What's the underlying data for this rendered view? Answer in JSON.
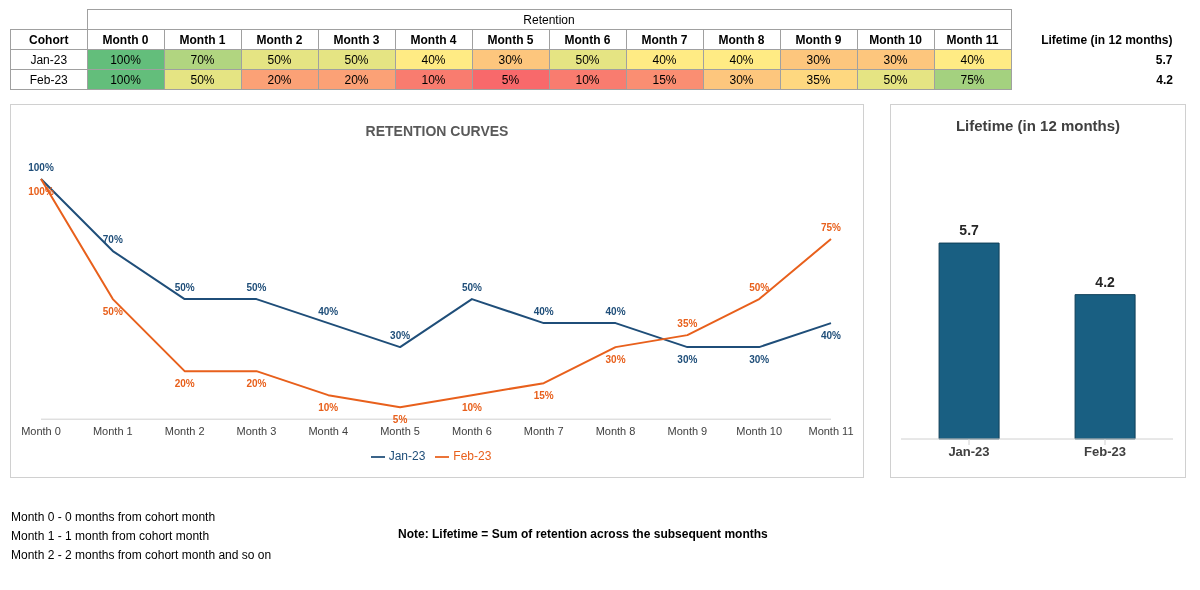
{
  "chart_data": [
    {
      "type": "heatmap",
      "title": "Retention",
      "ylabel": "Cohort",
      "y2label": "Lifetime (in 12 months)",
      "categories": [
        "Month 0",
        "Month 1",
        "Month 2",
        "Month 3",
        "Month 4",
        "Month 5",
        "Month 6",
        "Month 7",
        "Month 8",
        "Month 9",
        "Month 10",
        "Month 11"
      ],
      "y_categories": [
        "Jan-23",
        "Feb-23"
      ],
      "y2_categories": [
        "5.7",
        "4.2"
      ],
      "cells": [
        [
          100,
          70,
          50,
          50,
          40,
          30,
          50,
          40,
          40,
          30,
          30,
          40
        ],
        [
          100,
          50,
          20,
          20,
          10,
          5,
          10,
          15,
          30,
          35,
          50,
          75
        ]
      ],
      "cell_labels": [
        [
          "100%",
          "70%",
          "50%",
          "50%",
          "40%",
          "30%",
          "50%",
          "40%",
          "40%",
          "30%",
          "30%",
          "40%"
        ],
        [
          "100%",
          "50%",
          "20%",
          "20%",
          "10%",
          "5%",
          "10%",
          "15%",
          "30%",
          "35%",
          "50%",
          "75%"
        ]
      ]
    },
    {
      "type": "line",
      "title": "RETENTION CURVES",
      "categories": [
        "Month 0",
        "Month 1",
        "Month 2",
        "Month 3",
        "Month 4",
        "Month 5",
        "Month 6",
        "Month 7",
        "Month 8",
        "Month 9",
        "Month 10",
        "Month 11"
      ],
      "series": [
        {
          "name": "Jan-23",
          "color": "#1f4e79",
          "values": [
            100,
            70,
            50,
            50,
            40,
            30,
            50,
            40,
            40,
            30,
            30,
            40
          ],
          "value_labels": [
            "100%",
            "70%",
            "50%",
            "50%",
            "40%",
            "30%",
            "50%",
            "40%",
            "40%",
            "30%",
            "30%",
            "40%"
          ]
        },
        {
          "name": "Feb-23",
          "color": "#e8601c",
          "values": [
            100,
            50,
            20,
            20,
            10,
            5,
            10,
            15,
            30,
            35,
            50,
            75
          ],
          "value_labels": [
            "100%",
            "50%",
            "20%",
            "20%",
            "10%",
            "5%",
            "10%",
            "15%",
            "30%",
            "35%",
            "50%",
            "75%"
          ]
        }
      ],
      "legend": "bottom",
      "marker": "none",
      "grid": false,
      "tick_labels": "x",
      "annotations": [
        "Month 0 - 0 months from cohort month",
        "Month 1 - 1 month from cohort month",
        "Month 2 - 2 months from cohort month and so on",
        "Note: Lifetime = Sum of retention across the subsequent months"
      ]
    },
    {
      "type": "bar",
      "title": "Lifetime (in 12 months)",
      "categories": [
        "Jan-23",
        "Feb-23"
      ],
      "values": [
        5.7,
        4.2
      ],
      "color": "#195f82",
      "data_labels": true,
      "grid": false,
      "tick_labels": "x"
    }
  ]
}
